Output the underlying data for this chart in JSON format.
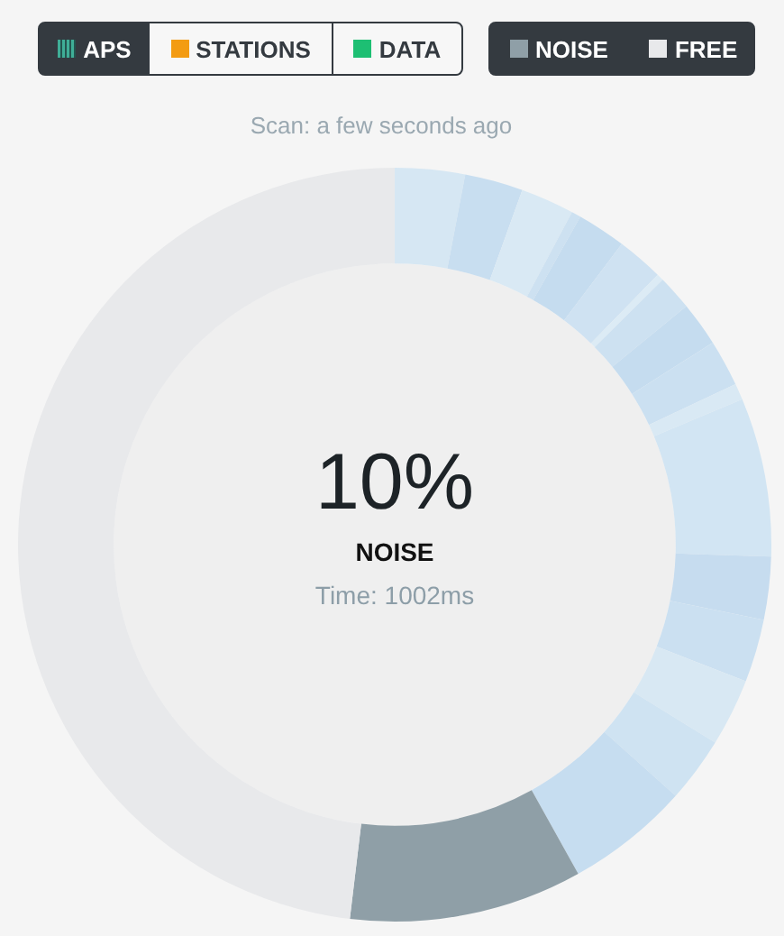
{
  "chart_data": {
    "type": "donut",
    "categories": [
      null,
      null,
      null,
      null,
      null,
      null,
      null,
      null,
      null,
      null,
      null,
      null,
      null,
      null,
      null,
      null,
      null,
      "NOISE",
      "FREE"
    ],
    "values": [
      3,
      2.5,
      2.3,
      0.4,
      2.1,
      2,
      0.3,
      1.5,
      1.9,
      2,
      0.7,
      6.8,
      2.7,
      2.7,
      2.9,
      2.8,
      5.3,
      10,
      48.1
    ],
    "colors": [
      "#d6e7f3",
      "#c8def0",
      "#d9e9f4",
      "#cde1f1",
      "#c5dcef",
      "#cfe2f2",
      "#dcebf5",
      "#cde1f1",
      "#c5dcef",
      "#cbe0f1",
      "#d9e9f4",
      "#d2e5f3",
      "#c6dcef",
      "#cbe0f1",
      "#d8e8f3",
      "#cfe3f2",
      "#c6ddf0",
      "#8f9fa7",
      "#e8e9eb"
    ],
    "legend": "top right",
    "annotations": [
      "APS",
      "STATIONS",
      "DATA",
      "Scan: a few seconds ago",
      "10%",
      "NOISE",
      "Time: 1002ms"
    ]
  }
}
